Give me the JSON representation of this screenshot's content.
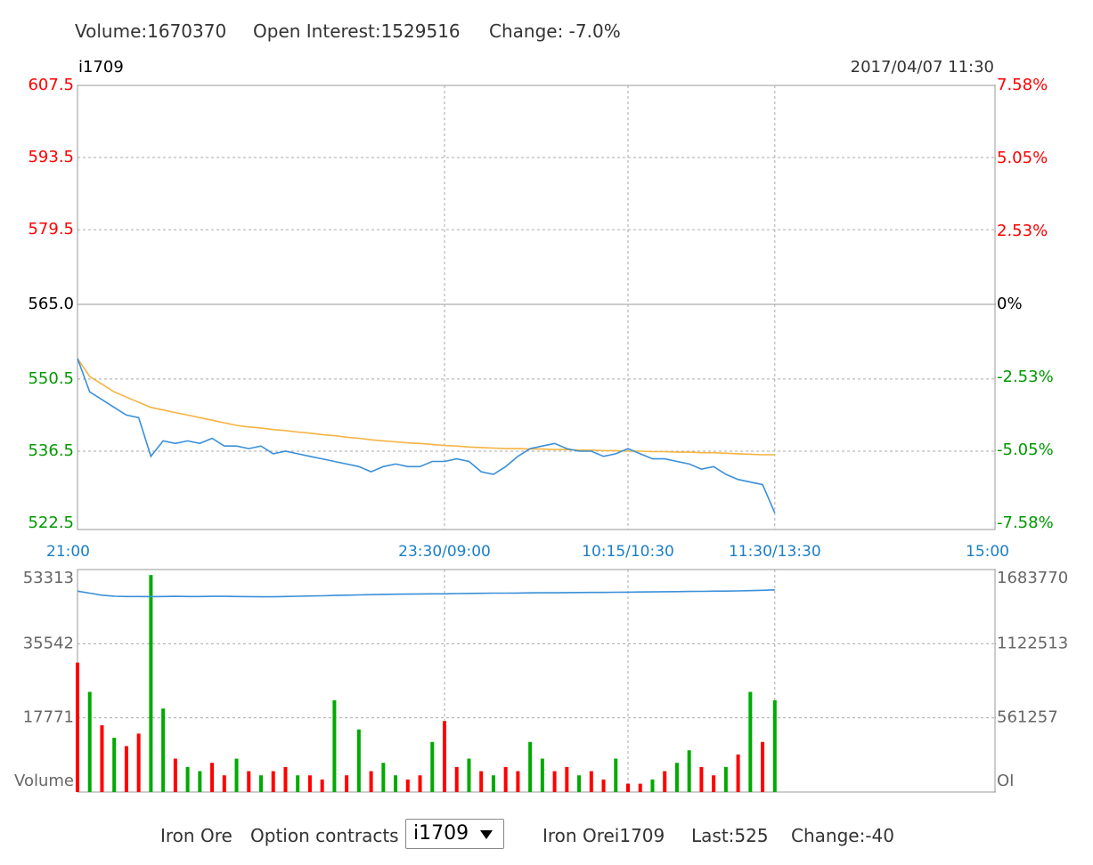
{
  "header": {
    "items": [
      "Volume:1670370",
      "Open Interest:1529516",
      "Change: -7.0%"
    ]
  },
  "chart_data": [
    {
      "type": "line",
      "title": "i1709",
      "subtitle": "2017/04/07 11:30",
      "x": [
        0,
        5,
        10,
        15,
        20,
        25,
        30,
        35,
        40,
        45,
        50,
        55,
        60,
        65,
        70,
        75,
        80,
        85,
        90,
        95,
        100,
        105,
        110,
        115,
        120,
        125,
        130,
        135,
        140,
        145,
        150,
        155,
        160,
        165,
        170,
        175,
        180,
        185,
        190,
        195,
        200,
        205,
        210,
        215,
        220,
        225,
        230,
        235,
        240,
        245,
        250,
        255,
        260,
        265,
        270,
        275,
        280,
        285
      ],
      "xlim": [
        0,
        375
      ],
      "xticks": [
        {
          "value": 0,
          "label": "21:00"
        },
        {
          "value": 150,
          "label": "23:30/09:00"
        },
        {
          "value": 225,
          "label": "10:15/10:30"
        },
        {
          "value": 285,
          "label": "11:30/13:30"
        },
        {
          "value": 375,
          "label": "15:00"
        }
      ],
      "ylim": [
        522.5,
        607.5
      ],
      "yticks": [
        522.5,
        536.5,
        550.5,
        {
          "value": 565,
          "label": "565.0"
        },
        579.5,
        593.5,
        607.5
      ],
      "y2lim": [
        -7.58,
        7.58
      ],
      "y2ticks": [
        {
          "value": -7.58,
          "label": "-7.58%"
        },
        {
          "value": -5.05,
          "label": "-5.05%"
        },
        {
          "value": -2.53,
          "label": "-2.53%"
        },
        {
          "value": 0,
          "label": "0%"
        },
        {
          "value": 2.53,
          "label": "2.53%"
        },
        {
          "value": 5.05,
          "label": "5.05%"
        },
        {
          "value": 7.58,
          "label": "7.58%"
        }
      ],
      "grid": true,
      "tick_colors": {
        "up": "#ff0000",
        "flat": "#000000",
        "down": "#009900"
      },
      "series": [
        {
          "color": "#3a8fd8",
          "values": [
            554.5,
            548,
            546.5,
            545,
            543.5,
            543,
            535.5,
            538.5,
            538,
            538.5,
            538,
            539,
            537.5,
            537.5,
            537,
            537.5,
            536,
            536.5,
            536,
            535.5,
            535,
            534.5,
            534,
            533.5,
            532.5,
            533.5,
            534,
            533.5,
            533.5,
            534.5,
            534.5,
            535,
            534.5,
            532.5,
            532,
            533.5,
            535.5,
            537,
            537.5,
            538,
            537,
            536.5,
            536.5,
            535.5,
            536,
            537,
            536,
            535,
            535,
            534.5,
            534,
            533,
            533.5,
            532,
            531,
            530.5,
            530,
            524.5
          ]
        },
        {
          "color": "#f5b342",
          "values": [
            554.5,
            551,
            549.5,
            548,
            547,
            546,
            545,
            544.5,
            544,
            543.5,
            543,
            542.5,
            542,
            541.5,
            541.2,
            541,
            540.7,
            540.5,
            540.2,
            540,
            539.7,
            539.5,
            539.2,
            539,
            538.7,
            538.5,
            538.3,
            538.1,
            538,
            537.8,
            537.6,
            537.5,
            537.3,
            537.2,
            537.1,
            537,
            537,
            536.9,
            536.9,
            536.8,
            536.8,
            536.7,
            536.7,
            536.6,
            536.6,
            536.5,
            536.5,
            536.4,
            536.4,
            536.3,
            536.3,
            536.2,
            536.2,
            536.1,
            536,
            535.9,
            535.8,
            535.8
          ]
        }
      ]
    },
    {
      "type": "bar",
      "x": [
        0,
        5,
        10,
        15,
        20,
        25,
        30,
        35,
        40,
        45,
        50,
        55,
        60,
        65,
        70,
        75,
        80,
        85,
        90,
        95,
        100,
        105,
        110,
        115,
        120,
        125,
        130,
        135,
        140,
        145,
        150,
        155,
        160,
        165,
        170,
        175,
        180,
        185,
        190,
        195,
        200,
        205,
        210,
        215,
        220,
        225,
        230,
        235,
        240,
        245,
        250,
        255,
        260,
        265,
        270,
        275,
        280,
        285
      ],
      "xlim": [
        0,
        375
      ],
      "ylim": [
        0,
        53313
      ],
      "yticks": [
        {
          "value": 0,
          "label": "Volume"
        },
        17771,
        35542,
        53313
      ],
      "y2lim": [
        0,
        1683770
      ],
      "y2ticks": [
        {
          "value": 0,
          "label": "OI"
        },
        561257,
        1122513,
        1683770
      ],
      "grid": true,
      "series": [
        {
          "type": "bar",
          "values": [
            31000,
            24000,
            16000,
            13000,
            11000,
            14000,
            52000,
            20000,
            8000,
            6000,
            5000,
            7000,
            4000,
            8000,
            5000,
            4000,
            5000,
            6000,
            4000,
            4000,
            3000,
            22000,
            4000,
            15000,
            5000,
            7000,
            4000,
            3000,
            4000,
            12000,
            17000,
            6000,
            8000,
            5000,
            4000,
            6000,
            5000,
            12000,
            8000,
            5000,
            6000,
            4000,
            5000,
            3000,
            8000,
            2000,
            2000,
            3000,
            5000,
            7000,
            10000,
            6000,
            4000,
            6000,
            9000,
            24000,
            12000,
            22000
          ],
          "colors": [
            "#ff0000",
            "#00aa00",
            "#ff0000",
            "#00aa00",
            "#ff0000",
            "#ff0000",
            "#00aa00",
            "#00aa00",
            "#ff0000",
            "#00aa00",
            "#00aa00",
            "#ff0000",
            "#ff0000",
            "#00aa00",
            "#ff0000",
            "#00aa00",
            "#ff0000",
            "#ff0000",
            "#00aa00",
            "#ff0000",
            "#ff0000",
            "#00aa00",
            "#ff0000",
            "#00aa00",
            "#ff0000",
            "#00aa00",
            "#00aa00",
            "#ff0000",
            "#ff0000",
            "#00aa00",
            "#ff0000",
            "#ff0000",
            "#00aa00",
            "#ff0000",
            "#00aa00",
            "#ff0000",
            "#ff0000",
            "#00aa00",
            "#00aa00",
            "#ff0000",
            "#ff0000",
            "#00aa00",
            "#ff0000",
            "#ff0000",
            "#00aa00",
            "#ff0000",
            "#ff0000",
            "#00aa00",
            "#ff0000",
            "#00aa00",
            "#00aa00",
            "#ff0000",
            "#ff0000",
            "#00aa00",
            "#ff0000",
            "#00aa00",
            "#ff0000",
            "#00aa00"
          ]
        },
        {
          "type": "line",
          "axis": "y2",
          "color": "#3a8fd8",
          "values": [
            1520000,
            1505000,
            1490000,
            1482000,
            1480000,
            1480000,
            1479000,
            1480000,
            1481000,
            1480000,
            1480000,
            1481000,
            1482000,
            1480000,
            1479000,
            1478000,
            1478000,
            1480000,
            1482000,
            1484000,
            1485000,
            1488000,
            1490000,
            1492000,
            1494000,
            1496000,
            1497000,
            1498000,
            1499000,
            1500000,
            1500000,
            1502000,
            1503000,
            1504000,
            1505000,
            1505000,
            1506000,
            1507000,
            1508000,
            1508000,
            1509000,
            1510000,
            1511000,
            1511000,
            1512000,
            1513000,
            1514000,
            1515000,
            1516000,
            1517000,
            1518000,
            1519000,
            1520000,
            1521000,
            1522000,
            1524000,
            1527000,
            1530000
          ]
        }
      ]
    }
  ],
  "footer": {
    "product": "Iron Ore",
    "label": "Option contracts",
    "select": "i1709",
    "name": "Iron Orei1709",
    "last": "Last:525",
    "change": "Change:-40"
  }
}
